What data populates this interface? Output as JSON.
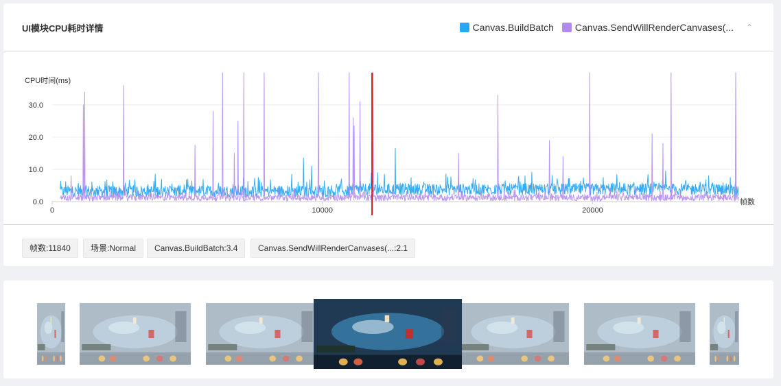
{
  "panel": {
    "title": "UI模块CPU耗时详情",
    "collapse_icon": "chevron-up-icon"
  },
  "legend": [
    {
      "name": "Canvas.BuildBatch",
      "color": "#29a7f2"
    },
    {
      "name": "Canvas.SendWillRenderCanvases(...",
      "color": "#b38bf0"
    }
  ],
  "chart_data": {
    "type": "line",
    "ylabel": "CPU时间(ms)",
    "xlabel": "帧数",
    "x_ticks": [
      0,
      10000,
      20000
    ],
    "y_ticks": [
      "0.0",
      "10.0",
      "20.0",
      "30.0"
    ],
    "xlim": [
      0,
      25400
    ],
    "ylim": [
      0,
      40
    ],
    "grid": true,
    "marker_x": 11840,
    "marker_color": "#cc1a1a",
    "series": [
      {
        "name": "Canvas.BuildBatch",
        "color": "#29a7f2",
        "baseline": 3.2,
        "noise": 1.8,
        "peaks": [
          [
            9000,
            13.5
          ],
          [
            9300,
            11.0
          ],
          [
            11750,
            9.0
          ],
          [
            12400,
            16.5
          ],
          [
            12000,
            8.5
          ],
          [
            17200,
            8.0
          ],
          [
            22400,
            9.5
          ],
          [
            24800,
            7.5
          ]
        ]
      },
      {
        "name": "Canvas.SendWillRenderCanvases(...",
        "color": "#b38bf0",
        "baseline": 1.2,
        "noise": 1.0,
        "peaks": [
          [
            400,
            8.0
          ],
          [
            850,
            30.0
          ],
          [
            900,
            34.0
          ],
          [
            2350,
            36.0
          ],
          [
            4990,
            17.5
          ],
          [
            5650,
            28.0
          ],
          [
            6000,
            40.0
          ],
          [
            6450,
            15.0
          ],
          [
            6580,
            25.0
          ],
          [
            6800,
            40.0
          ],
          [
            7550,
            40.0
          ],
          [
            9550,
            40.0
          ],
          [
            10700,
            40.0
          ],
          [
            10850,
            26.0
          ],
          [
            10880,
            23.5
          ],
          [
            11100,
            31.0
          ],
          [
            11580,
            40.0
          ],
          [
            14750,
            15.0
          ],
          [
            16200,
            33.0
          ],
          [
            18100,
            19.0
          ],
          [
            18600,
            14.0
          ],
          [
            19600,
            40.0
          ],
          [
            21900,
            21.0
          ],
          [
            22300,
            18.0
          ],
          [
            22600,
            40.0
          ],
          [
            25000,
            40.0
          ],
          [
            25150,
            20.0
          ]
        ]
      }
    ]
  },
  "info_tags": [
    "帧数:11840",
    "场景:Normal",
    "Canvas.BuildBatch:3.4",
    "Canvas.SendWillRenderCanvases(...:2.1"
  ],
  "frames": {
    "count": 7,
    "selected_index": 3
  }
}
